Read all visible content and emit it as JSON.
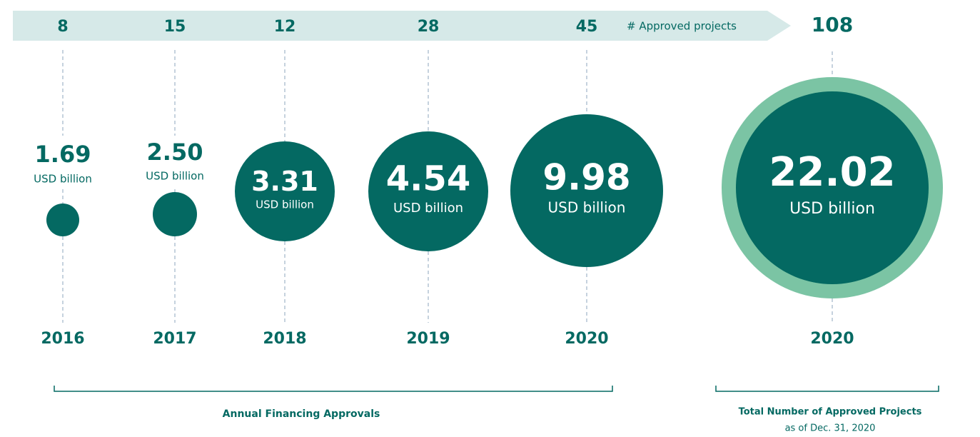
{
  "banner_label": "# Approved projects",
  "annual": [
    {
      "count": "8",
      "value": "1.69",
      "unit": "USD billion",
      "year": "2016"
    },
    {
      "count": "15",
      "value": "2.50",
      "unit": "USD billion",
      "year": "2017"
    },
    {
      "count": "12",
      "value": "3.31",
      "unit": "USD billion",
      "year": "2018"
    },
    {
      "count": "28",
      "value": "4.54",
      "unit": "USD billion",
      "year": "2019"
    },
    {
      "count": "45",
      "value": "9.98",
      "unit": "USD billion",
      "year": "2020"
    }
  ],
  "total": {
    "count": "108",
    "value": "22.02",
    "unit": "USD billion",
    "year": "2020"
  },
  "annual_caption": "Annual Financing Approvals",
  "total_caption": "Total Number of Approved Projects",
  "total_subcaption": "as of Dec. 31, 2020"
}
